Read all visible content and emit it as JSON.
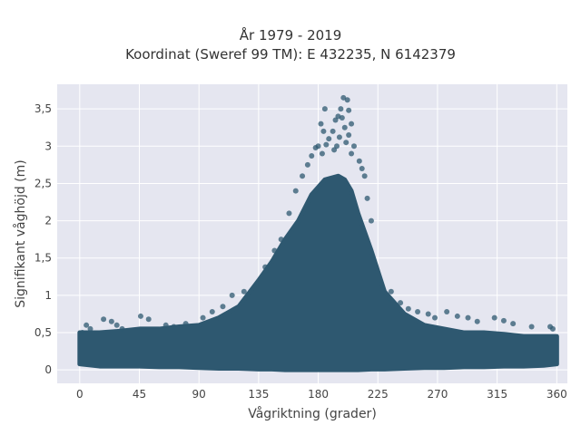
{
  "chart_data": {
    "type": "scatter",
    "title": "År 1979 - 2019",
    "subtitle": "Koordinat (Sweref 99 TM): E 432235, N 6142379",
    "xlabel": "Vågriktning (grader)",
    "ylabel": "Signifikant våghöjd (m)",
    "xlim": [
      -17,
      368
    ],
    "ylim": [
      -0.18,
      3.83
    ],
    "xticks": [
      0,
      45,
      90,
      135,
      180,
      225,
      270,
      315,
      360
    ],
    "xtick_labels": [
      "0",
      "45",
      "90",
      "135",
      "180",
      "225",
      "270",
      "315",
      "360"
    ],
    "yticks": [
      0,
      0.5,
      1,
      1.5,
      2,
      2.5,
      3,
      3.5
    ],
    "ytick_labels": [
      "0",
      "0,5",
      "1",
      "1,5",
      "2",
      "2,5",
      "3",
      "3,5"
    ],
    "grid": true,
    "marker_color": "#2e5870",
    "plot_bg": "#e5e6f0",
    "envelope": {
      "x": [
        0,
        15,
        30,
        45,
        60,
        75,
        90,
        105,
        120,
        135,
        145,
        155,
        165,
        175,
        185,
        195,
        200,
        205,
        210,
        220,
        230,
        245,
        260,
        275,
        290,
        305,
        320,
        335,
        350,
        360
      ],
      "upper": [
        0.5,
        0.5,
        0.52,
        0.55,
        0.55,
        0.58,
        0.6,
        0.7,
        0.85,
        1.2,
        1.45,
        1.75,
        2.0,
        2.35,
        2.55,
        2.6,
        2.55,
        2.4,
        2.1,
        1.6,
        1.05,
        0.75,
        0.6,
        0.55,
        0.5,
        0.5,
        0.48,
        0.45,
        0.45,
        0.45
      ],
      "lower": [
        0.08,
        0.05,
        0.05,
        0.05,
        0.04,
        0.04,
        0.03,
        0.02,
        0.02,
        0.01,
        0.01,
        0.0,
        0.0,
        0.0,
        0.0,
        0.0,
        0.0,
        0.0,
        0.0,
        0.01,
        0.01,
        0.02,
        0.03,
        0.03,
        0.04,
        0.04,
        0.05,
        0.05,
        0.06,
        0.08
      ]
    },
    "points": [
      {
        "x": 199,
        "y": 3.65
      },
      {
        "x": 202,
        "y": 3.62
      },
      {
        "x": 197,
        "y": 3.5
      },
      {
        "x": 203,
        "y": 3.48
      },
      {
        "x": 195,
        "y": 3.4
      },
      {
        "x": 198,
        "y": 3.38
      },
      {
        "x": 185,
        "y": 3.5
      },
      {
        "x": 182,
        "y": 3.3
      },
      {
        "x": 193,
        "y": 3.35
      },
      {
        "x": 205,
        "y": 3.3
      },
      {
        "x": 191,
        "y": 3.2
      },
      {
        "x": 200,
        "y": 3.25
      },
      {
        "x": 184,
        "y": 3.2
      },
      {
        "x": 188,
        "y": 3.1
      },
      {
        "x": 196,
        "y": 3.12
      },
      {
        "x": 203,
        "y": 3.15
      },
      {
        "x": 180,
        "y": 3.0
      },
      {
        "x": 186,
        "y": 3.02
      },
      {
        "x": 194,
        "y": 3.0
      },
      {
        "x": 201,
        "y": 3.05
      },
      {
        "x": 207,
        "y": 3.0
      },
      {
        "x": 178,
        "y": 2.98
      },
      {
        "x": 192,
        "y": 2.95
      },
      {
        "x": 183,
        "y": 2.9
      },
      {
        "x": 205,
        "y": 2.9
      },
      {
        "x": 175,
        "y": 2.87
      },
      {
        "x": 211,
        "y": 2.8
      },
      {
        "x": 172,
        "y": 2.75
      },
      {
        "x": 213,
        "y": 2.7
      },
      {
        "x": 168,
        "y": 2.6
      },
      {
        "x": 215,
        "y": 2.6
      },
      {
        "x": 163,
        "y": 2.4
      },
      {
        "x": 217,
        "y": 2.3
      },
      {
        "x": 158,
        "y": 2.1
      },
      {
        "x": 220,
        "y": 2.0
      },
      {
        "x": 152,
        "y": 1.75
      },
      {
        "x": 147,
        "y": 1.6
      },
      {
        "x": 140,
        "y": 1.38
      },
      {
        "x": 124,
        "y": 1.05
      },
      {
        "x": 115,
        "y": 1.0
      },
      {
        "x": 108,
        "y": 0.85
      },
      {
        "x": 235,
        "y": 1.05
      },
      {
        "x": 242,
        "y": 0.9
      },
      {
        "x": 248,
        "y": 0.82
      },
      {
        "x": 255,
        "y": 0.78
      },
      {
        "x": 263,
        "y": 0.75
      },
      {
        "x": 268,
        "y": 0.7
      },
      {
        "x": 277,
        "y": 0.78
      },
      {
        "x": 285,
        "y": 0.72
      },
      {
        "x": 293,
        "y": 0.7
      },
      {
        "x": 300,
        "y": 0.65
      },
      {
        "x": 313,
        "y": 0.7
      },
      {
        "x": 320,
        "y": 0.66
      },
      {
        "x": 327,
        "y": 0.62
      },
      {
        "x": 341,
        "y": 0.58
      },
      {
        "x": 355,
        "y": 0.58
      },
      {
        "x": 357,
        "y": 0.55
      },
      {
        "x": 2,
        "y": 0.5
      },
      {
        "x": 5,
        "y": 0.6
      },
      {
        "x": 8,
        "y": 0.55
      },
      {
        "x": 18,
        "y": 0.68
      },
      {
        "x": 24,
        "y": 0.65
      },
      {
        "x": 28,
        "y": 0.6
      },
      {
        "x": 32,
        "y": 0.55
      },
      {
        "x": 46,
        "y": 0.72
      },
      {
        "x": 52,
        "y": 0.68
      },
      {
        "x": 65,
        "y": 0.6
      },
      {
        "x": 71,
        "y": 0.58
      },
      {
        "x": 80,
        "y": 0.62
      },
      {
        "x": 93,
        "y": 0.7
      },
      {
        "x": 100,
        "y": 0.78
      }
    ]
  }
}
